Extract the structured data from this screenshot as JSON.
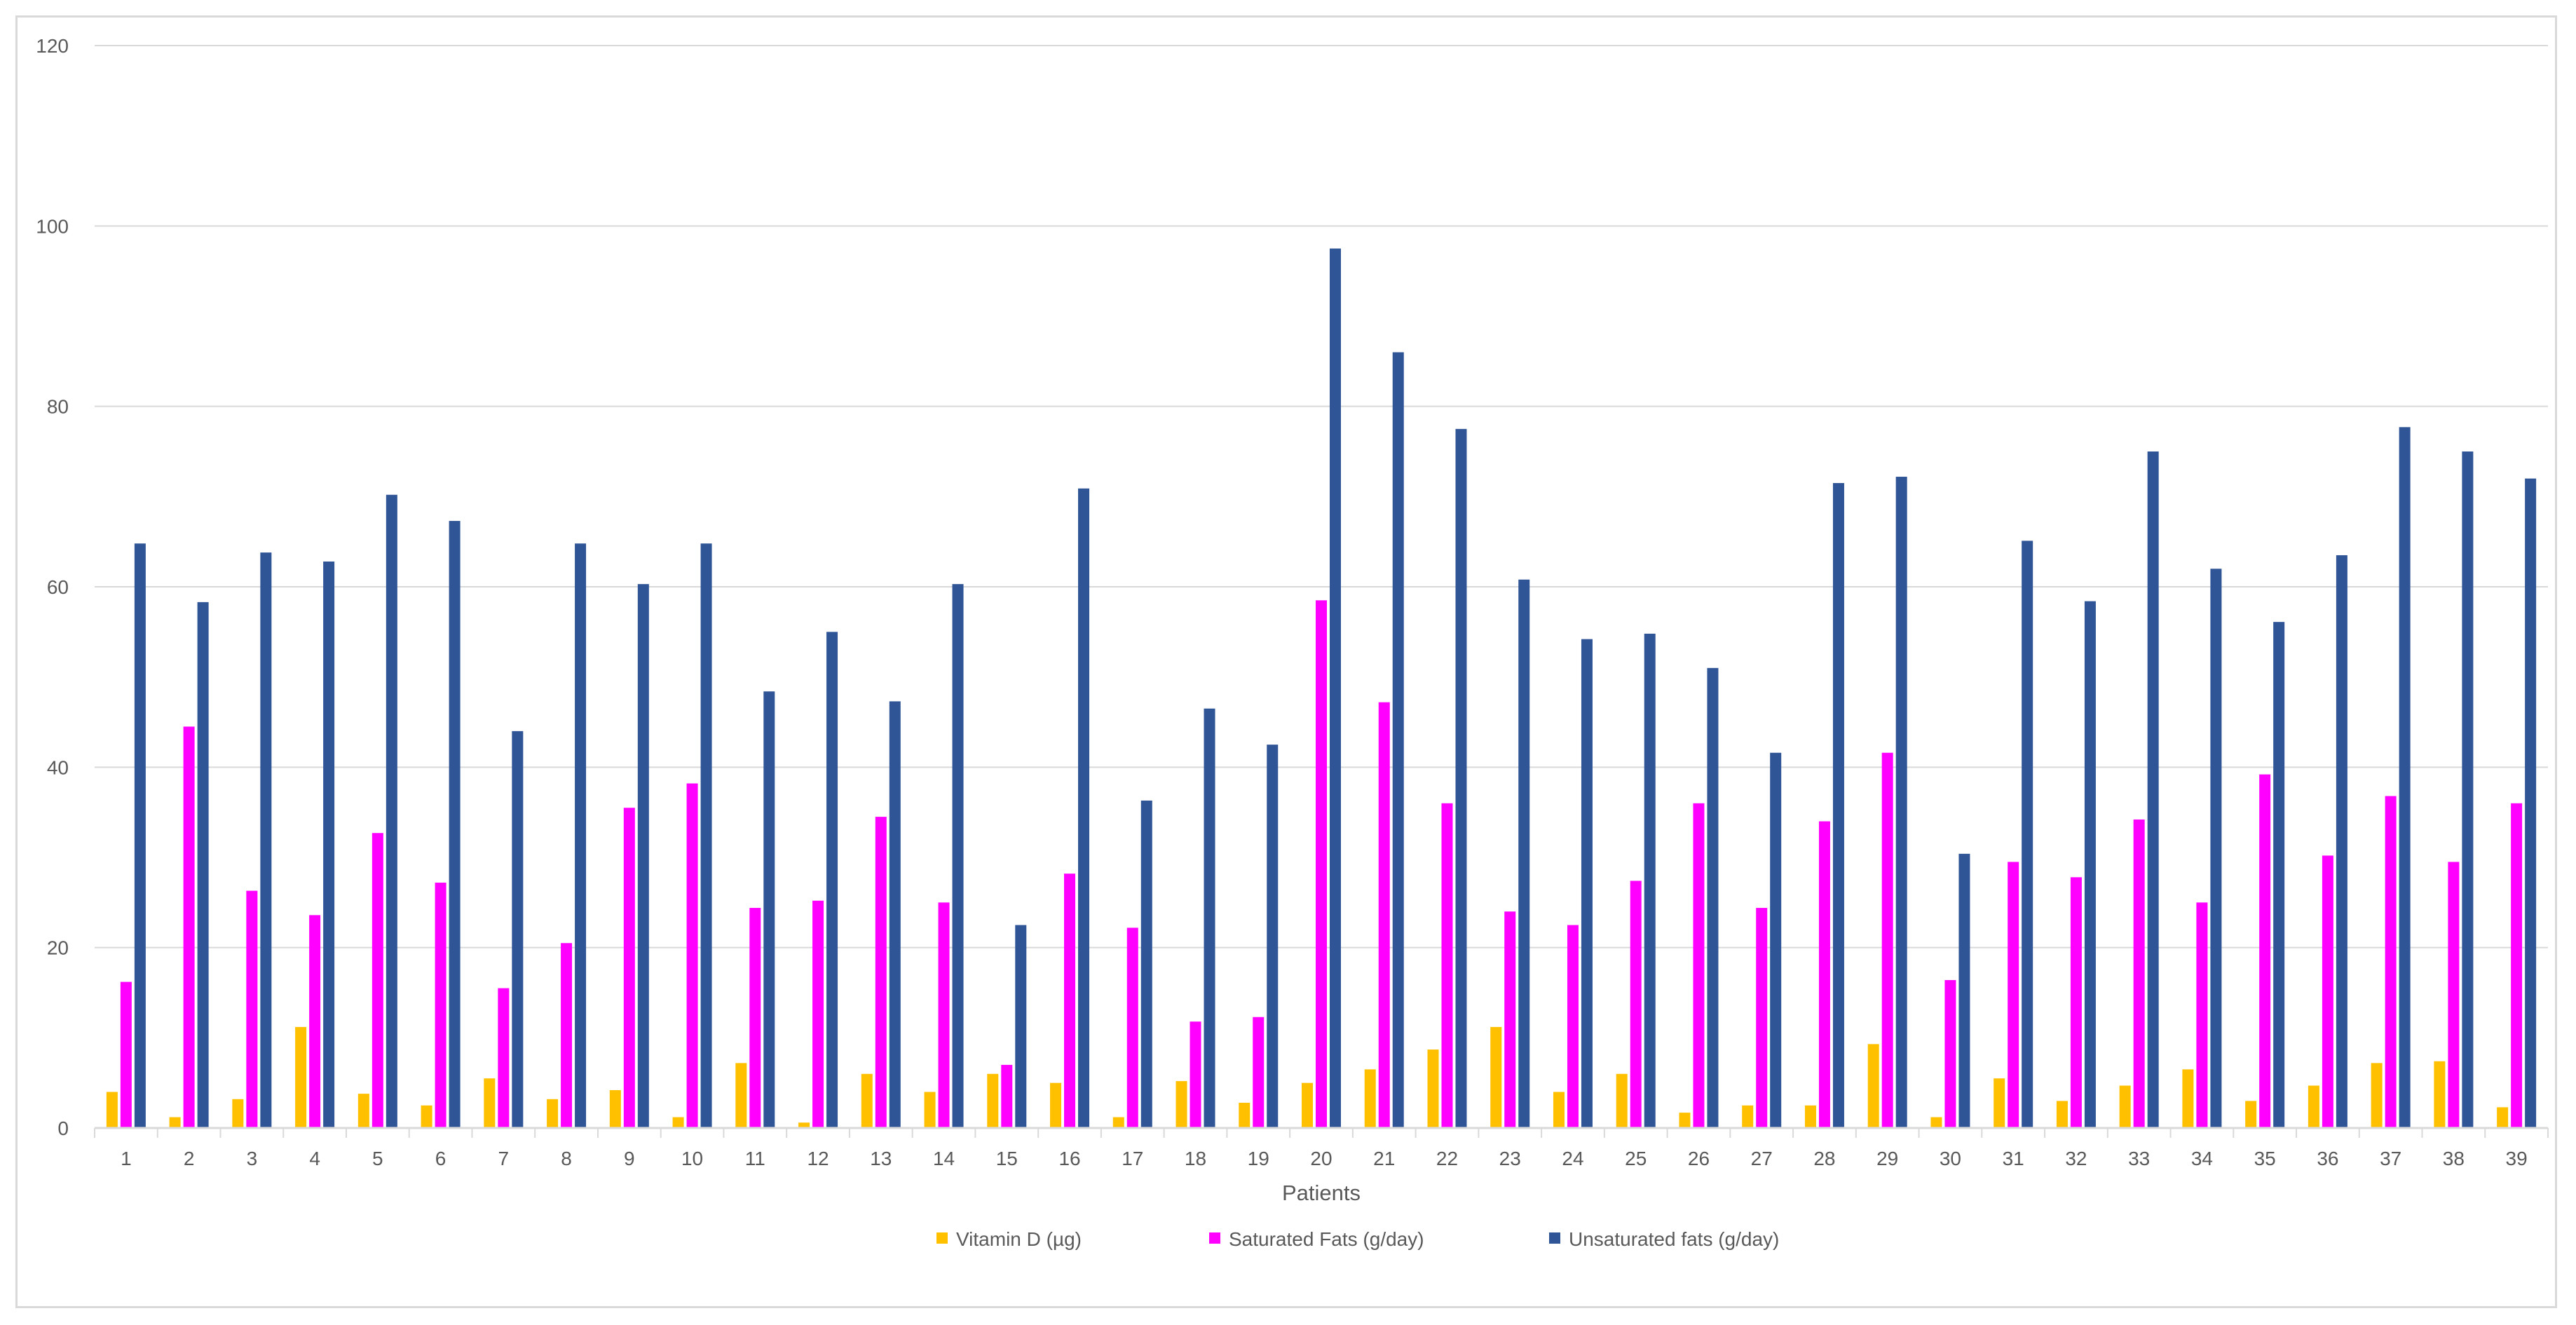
{
  "chart_data": {
    "type": "bar",
    "title": "",
    "xlabel": "Patients",
    "ylabel": "",
    "ylim": [
      0,
      120
    ],
    "yticks": [
      "0",
      "20",
      "40",
      "60",
      "80",
      "100",
      "120"
    ],
    "categories": [
      "1",
      "2",
      "3",
      "4",
      "5",
      "6",
      "7",
      "8",
      "9",
      "10",
      "11",
      "12",
      "13",
      "14",
      "15",
      "16",
      "17",
      "18",
      "19",
      "20",
      "21",
      "22",
      "23",
      "24",
      "25",
      "26",
      "27",
      "28",
      "29",
      "30",
      "31",
      "32",
      "33",
      "34",
      "35",
      "36",
      "37",
      "38",
      "39"
    ],
    "series": [
      {
        "name": "Vitamin D (µg)",
        "color": "#FFC000",
        "values": [
          4.0,
          1.2,
          3.2,
          11.2,
          3.8,
          2.5,
          5.5,
          3.2,
          4.2,
          1.2,
          7.2,
          0.6,
          6.0,
          4.0,
          6.0,
          5.0,
          1.2,
          5.2,
          2.8,
          5.0,
          6.5,
          8.7,
          11.2,
          4.0,
          6.0,
          1.7,
          2.5,
          2.5,
          9.3,
          1.2,
          5.5,
          3.0,
          4.7,
          6.5,
          3.0,
          4.7,
          7.2,
          7.4,
          2.3
        ]
      },
      {
        "name": "Saturated Fats (g/day)",
        "color": "#FF00FF",
        "values": [
          16.2,
          44.5,
          26.3,
          23.6,
          32.7,
          27.2,
          15.5,
          20.5,
          35.5,
          38.2,
          24.4,
          25.2,
          34.5,
          25.0,
          7.0,
          28.2,
          22.2,
          11.8,
          12.3,
          58.5,
          47.2,
          36.0,
          24.0,
          22.5,
          27.4,
          36.0,
          24.4,
          34.0,
          41.6,
          16.4,
          29.5,
          27.8,
          34.2,
          25.0,
          39.2,
          30.2,
          36.8,
          29.5,
          36.0
        ]
      },
      {
        "name": "Unsaturated fats (g/day)",
        "color": "#2F5597",
        "values": [
          64.8,
          58.3,
          63.8,
          62.8,
          70.2,
          67.3,
          44.0,
          64.8,
          60.3,
          64.8,
          48.4,
          55.0,
          47.3,
          60.3,
          22.5,
          70.9,
          36.3,
          46.5,
          42.5,
          97.5,
          86.0,
          77.5,
          60.8,
          54.2,
          54.8,
          51.0,
          41.6,
          71.5,
          72.2,
          30.4,
          65.1,
          58.4,
          75.0,
          62.0,
          56.1,
          63.5,
          77.7,
          75.0,
          72.0
        ]
      }
    ],
    "grid": true,
    "legend_position": "bottom"
  }
}
